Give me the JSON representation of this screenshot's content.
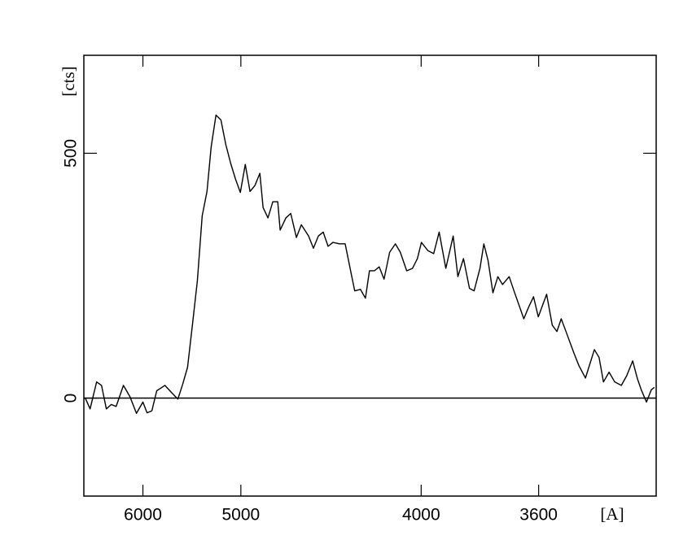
{
  "chart_data": {
    "type": "line",
    "x_label": "[A]",
    "y_label": "[cts]",
    "xscale": "inverse-square",
    "xlim": [
      7000,
      3300
    ],
    "ylim": [
      -200,
      700
    ],
    "xticks": [
      6000,
      5000,
      4000,
      3600
    ],
    "yticks": [
      0,
      500
    ],
    "zero_line": true,
    "series": [
      {
        "color": "#000000",
        "x": [
          6969,
          6870,
          6742,
          6650,
          6563,
          6478,
          6397,
          6281,
          6183,
          6089,
          6000,
          5945,
          5883,
          5822,
          5724,
          5641,
          5578,
          5527,
          5476,
          5427,
          5378,
          5332,
          5287,
          5249,
          5206,
          5163,
          5122,
          5082,
          5042,
          5004,
          4966,
          4930,
          4894,
          4858,
          4835,
          4801,
          4768,
          4735,
          4719,
          4682,
          4651,
          4616,
          4586,
          4543,
          4515,
          4487,
          4460,
          4433,
          4407,
          4373,
          4343,
          4314,
          4295,
          4267,
          4243,
          4224,
          4201,
          4179,
          4157,
          4132,
          4107,
          4086,
          4059,
          4035,
          4015,
          3999,
          3973,
          3951,
          3930,
          3905,
          3878,
          3861,
          3841,
          3820,
          3804,
          3784,
          3771,
          3757,
          3741,
          3725,
          3710,
          3689,
          3674,
          3644,
          3630,
          3615,
          3601,
          3577,
          3561,
          3548,
          3536,
          3521,
          3501,
          3488,
          3471,
          3448,
          3436,
          3425,
          3411,
          3397,
          3381,
          3368,
          3354,
          3343,
          3334,
          3322,
          3311,
          3304
        ],
        "values": [
          0,
          -22,
          33,
          26,
          -22,
          -13,
          -17,
          26,
          3,
          -31,
          -8,
          -30,
          -26,
          15,
          26,
          10,
          -2,
          28,
          63,
          149,
          240,
          372,
          422,
          513,
          578,
          568,
          518,
          480,
          447,
          420,
          477,
          422,
          434,
          459,
          389,
          368,
          401,
          401,
          343,
          368,
          377,
          328,
          354,
          331,
          306,
          331,
          339,
          310,
          318,
          315,
          315,
          257,
          219,
          222,
          204,
          260,
          260,
          268,
          243,
          298,
          315,
          298,
          260,
          265,
          285,
          318,
          301,
          295,
          339,
          265,
          331,
          248,
          285,
          224,
          219,
          265,
          315,
          281,
          215,
          248,
          232,
          248,
          219,
          162,
          185,
          207,
          166,
          212,
          149,
          136,
          162,
          132,
          91,
          66,
          41,
          99,
          83,
          33,
          53,
          33,
          26,
          46,
          76,
          40,
          17,
          -8,
          17,
          22
        ]
      }
    ]
  }
}
